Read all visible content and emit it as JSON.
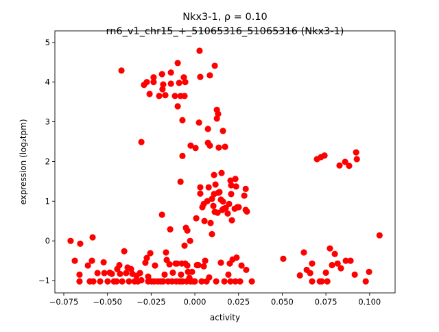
{
  "chart_data": {
    "type": "scatter",
    "title_line1": "Nkx3-1, ρ = 0.10",
    "title_line2": "rn6_v1_chr15_+_51065316_51065316 (Nkx3-1)",
    "xlabel": "activity",
    "ylabel": "expression (log₂tpm)",
    "xlim": [
      -0.0801,
      0.1146
    ],
    "ylim": [
      -1.31,
      5.29
    ],
    "xticks": [
      -0.075,
      -0.05,
      -0.025,
      0.0,
      0.025,
      0.05,
      0.075,
      0.1
    ],
    "xtick_labels": [
      "−0.075",
      "−0.050",
      "−0.025",
      "0.000",
      "0.025",
      "0.050",
      "0.075",
      "0.100"
    ],
    "yticks": [
      -1,
      0,
      1,
      2,
      3,
      4,
      5
    ],
    "ytick_labels": [
      "−1",
      "0",
      "1",
      "2",
      "3",
      "4",
      "5"
    ],
    "grid": false,
    "marker_color": "#ff0000",
    "points": [
      [
        -0.0711,
        0.0
      ],
      [
        -0.0687,
        -0.5
      ],
      [
        -0.066,
        -0.85
      ],
      [
        -0.0656,
        -0.07
      ],
      [
        -0.066,
        -1.02
      ],
      [
        -0.0612,
        -0.62
      ],
      [
        -0.0601,
        -1.02
      ],
      [
        -0.0585,
        0.09
      ],
      [
        -0.0589,
        -0.5
      ],
      [
        -0.0581,
        -1.02
      ],
      [
        -0.0557,
        -0.81
      ],
      [
        -0.0542,
        -1.02
      ],
      [
        -0.0522,
        -0.54
      ],
      [
        -0.0518,
        -0.81
      ],
      [
        -0.0499,
        -1.02
      ],
      [
        -0.0487,
        -0.8
      ],
      [
        -0.0475,
        -0.83
      ],
      [
        -0.0463,
        -1.02
      ],
      [
        -0.0448,
        -1.02
      ],
      [
        -0.0444,
        -0.71
      ],
      [
        -0.0432,
        -0.61
      ],
      [
        -0.0428,
        -0.83
      ],
      [
        -0.042,
        4.29
      ],
      [
        -0.0416,
        -1.02
      ],
      [
        -0.0404,
        -0.26
      ],
      [
        -0.0393,
        -0.81
      ],
      [
        -0.0385,
        -0.67
      ],
      [
        -0.0377,
        -1.02
      ],
      [
        -0.0365,
        -0.71
      ],
      [
        -0.0357,
        -0.83
      ],
      [
        -0.0345,
        -1.02
      ],
      [
        -0.0334,
        -0.88
      ],
      [
        -0.0326,
        -1.02
      ],
      [
        -0.0314,
        -0.81
      ],
      [
        -0.0306,
        -0.99
      ],
      [
        -0.0306,
        2.49
      ],
      [
        -0.0291,
        3.93
      ],
      [
        -0.0283,
        -0.55
      ],
      [
        -0.0275,
        -0.43
      ],
      [
        -0.0275,
        4.0
      ],
      [
        -0.0267,
        -0.9
      ],
      [
        -0.0267,
        -1.02
      ],
      [
        -0.0259,
        3.7
      ],
      [
        -0.0255,
        -0.31
      ],
      [
        -0.0247,
        -1.02
      ],
      [
        -0.0236,
        4.0
      ],
      [
        -0.0236,
        4.12
      ],
      [
        -0.0228,
        -0.62
      ],
      [
        -0.0232,
        -1.02
      ],
      [
        -0.0212,
        -1.02
      ],
      [
        -0.0204,
        3.65
      ],
      [
        -0.0196,
        -1.02
      ],
      [
        -0.0188,
        4.2
      ],
      [
        -0.0188,
        0.66
      ],
      [
        -0.0185,
        3.82
      ],
      [
        -0.0181,
        -1.02
      ],
      [
        -0.0181,
        3.94
      ],
      [
        -0.0173,
        -0.85
      ],
      [
        -0.0169,
        3.67
      ],
      [
        -0.0165,
        -0.29
      ],
      [
        -0.0161,
        -0.48
      ],
      [
        -0.0153,
        -1.02
      ],
      [
        -0.0145,
        -0.59
      ],
      [
        -0.0141,
        0.29
      ],
      [
        -0.0137,
        3.96
      ],
      [
        -0.0137,
        4.24
      ],
      [
        -0.013,
        -1.02
      ],
      [
        -0.0126,
        -0.8
      ],
      [
        -0.0114,
        3.65
      ],
      [
        -0.011,
        -0.57
      ],
      [
        -0.0106,
        -1.02
      ],
      [
        -0.0102,
        -0.57
      ],
      [
        -0.0098,
        3.39
      ],
      [
        -0.0098,
        4.48
      ],
      [
        -0.009,
        3.98
      ],
      [
        -0.0086,
        -1.02
      ],
      [
        -0.0082,
        3.65
      ],
      [
        -0.0082,
        1.49
      ],
      [
        -0.0079,
        -0.85
      ],
      [
        -0.0075,
        -0.57
      ],
      [
        -0.0071,
        2.14
      ],
      [
        -0.0071,
        3.04
      ],
      [
        -0.0071,
        -1.02
      ],
      [
        -0.0063,
        4.12
      ],
      [
        -0.0059,
        3.65
      ],
      [
        -0.0059,
        -0.12
      ],
      [
        -0.0055,
        4.0
      ],
      [
        -0.0055,
        -0.57
      ],
      [
        -0.0051,
        0.33
      ],
      [
        -0.0047,
        -1.02
      ],
      [
        -0.0043,
        -0.62
      ],
      [
        -0.0043,
        0.26
      ],
      [
        -0.0039,
        -0.78
      ],
      [
        -0.0031,
        -0.93
      ],
      [
        -0.0027,
        0.0
      ],
      [
        -0.0024,
        -1.02
      ],
      [
        -0.0024,
        2.4
      ],
      [
        -0.0016,
        -0.78
      ],
      [
        -0.0008,
        -1.02
      ],
      [
        0.0,
        -1.02
      ],
      [
        0.0004,
        2.34
      ],
      [
        0.0008,
        0.57
      ],
      [
        0.0012,
        -0.61
      ],
      [
        0.002,
        -0.61
      ],
      [
        0.0024,
        2.98
      ],
      [
        0.0027,
        4.79
      ],
      [
        0.0031,
        1.35
      ],
      [
        0.0031,
        1.19
      ],
      [
        0.0031,
        4.13
      ],
      [
        0.0039,
        -1.02
      ],
      [
        0.0043,
        0.85
      ],
      [
        0.0051,
        -0.64
      ],
      [
        0.0051,
        0.93
      ],
      [
        0.0055,
        0.5
      ],
      [
        0.0059,
        -0.5
      ],
      [
        0.0067,
        -1.02
      ],
      [
        0.0071,
        1.0
      ],
      [
        0.0075,
        2.47
      ],
      [
        0.0075,
        2.82
      ],
      [
        0.0079,
        1.35
      ],
      [
        0.0082,
        -0.92
      ],
      [
        0.0086,
        4.17
      ],
      [
        0.0086,
        2.4
      ],
      [
        0.009,
        0.45
      ],
      [
        0.0098,
        0.17
      ],
      [
        0.0098,
        1.06
      ],
      [
        0.0106,
        0.88
      ],
      [
        0.011,
        1.66
      ],
      [
        0.011,
        1.18
      ],
      [
        0.0114,
        4.41
      ],
      [
        0.0114,
        0.73
      ],
      [
        0.0118,
        1.42
      ],
      [
        0.0122,
        -1.02
      ],
      [
        0.0126,
        3.08
      ],
      [
        0.0126,
        3.3
      ],
      [
        0.013,
        0.71
      ],
      [
        0.0133,
        3.2
      ],
      [
        0.0133,
        1.21
      ],
      [
        0.0137,
        2.35
      ],
      [
        0.0141,
        1.23
      ],
      [
        0.0149,
        1.04
      ],
      [
        0.0149,
        -0.55
      ],
      [
        0.0153,
        1.71
      ],
      [
        0.0157,
        0.78
      ],
      [
        0.0161,
        2.77
      ],
      [
        0.0161,
        0.99
      ],
      [
        0.0165,
        0.81
      ],
      [
        0.0169,
        -1.02
      ],
      [
        0.0173,
        2.37
      ],
      [
        0.0177,
        0.83
      ],
      [
        0.0188,
        0.69
      ],
      [
        0.0192,
        -0.85
      ],
      [
        0.0196,
        0.93
      ],
      [
        0.02,
        -0.57
      ],
      [
        0.0204,
        1.52
      ],
      [
        0.0204,
        -1.02
      ],
      [
        0.0208,
        1.4
      ],
      [
        0.0208,
        1.18
      ],
      [
        0.0212,
        0.52
      ],
      [
        0.0216,
        -0.47
      ],
      [
        0.0228,
        0.81
      ],
      [
        0.0232,
        -1.02
      ],
      [
        0.0232,
        1.56
      ],
      [
        0.0236,
        1.37
      ],
      [
        0.0239,
        -0.42
      ],
      [
        0.0243,
        0.85
      ],
      [
        0.0251,
        0.85
      ],
      [
        0.0259,
        -1.02
      ],
      [
        0.0267,
        -0.62
      ],
      [
        0.0283,
        1.14
      ],
      [
        0.0291,
        1.31
      ],
      [
        0.0291,
        0.78
      ],
      [
        0.0294,
        -0.73
      ],
      [
        0.0298,
        0.74
      ],
      [
        0.0326,
        -1.02
      ],
      [
        0.0506,
        -0.45
      ],
      [
        0.0601,
        -0.87
      ],
      [
        0.0624,
        -0.29
      ],
      [
        0.064,
        -0.73
      ],
      [
        0.066,
        -0.81
      ],
      [
        0.0671,
        -0.57
      ],
      [
        0.0671,
        -1.02
      ],
      [
        0.0699,
        2.06
      ],
      [
        0.0715,
        -1.02
      ],
      [
        0.0726,
        -1.02
      ],
      [
        0.0722,
        2.11
      ],
      [
        0.0742,
        2.15
      ],
      [
        0.075,
        -0.8
      ],
      [
        0.0758,
        -1.02
      ],
      [
        0.0773,
        -0.19
      ],
      [
        0.0785,
        -0.61
      ],
      [
        0.0801,
        -0.33
      ],
      [
        0.0817,
        -0.57
      ],
      [
        0.0828,
        1.9
      ],
      [
        0.0836,
        -0.69
      ],
      [
        0.086,
        1.99
      ],
      [
        0.0864,
        -0.5
      ],
      [
        0.0883,
        1.89
      ],
      [
        0.0891,
        -0.5
      ],
      [
        0.0915,
        -0.85
      ],
      [
        0.0923,
        2.23
      ],
      [
        0.0927,
        2.06
      ],
      [
        0.0978,
        -1.02
      ],
      [
        0.0997,
        -0.78
      ],
      [
        0.1057,
        0.14
      ]
    ]
  }
}
